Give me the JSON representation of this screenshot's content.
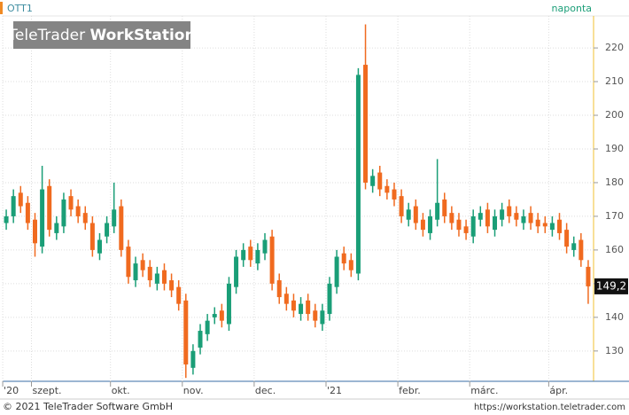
{
  "chart_data": {
    "type": "candlestick",
    "title": "OTT1",
    "interval": "naponta",
    "logo": {
      "brand": "TeleTrader",
      "product": "WorkStation"
    },
    "categories": [
      "'20",
      null,
      null,
      null,
      "szept.",
      null,
      null,
      null,
      null,
      null,
      null,
      null,
      null,
      null,
      null,
      "okt.",
      null,
      null,
      null,
      null,
      null,
      null,
      null,
      null,
      null,
      "nov.",
      null,
      null,
      null,
      null,
      null,
      null,
      null,
      null,
      null,
      "dec.",
      null,
      null,
      null,
      null,
      null,
      null,
      null,
      null,
      null,
      "'21",
      null,
      null,
      null,
      null,
      null,
      null,
      null,
      null,
      null,
      "febr.",
      null,
      null,
      null,
      null,
      null,
      null,
      null,
      null,
      null,
      "márc.",
      null,
      null,
      null,
      null,
      null,
      null,
      null,
      null,
      null,
      null,
      "ápr.",
      null,
      null,
      null,
      null,
      null
    ],
    "open": [
      168,
      170,
      177,
      174,
      169,
      161,
      179,
      165,
      167,
      176,
      173,
      171,
      168,
      159,
      164,
      167,
      173,
      161,
      151,
      157,
      155,
      150,
      154,
      151,
      149,
      145,
      125,
      131,
      135,
      140,
      142,
      138,
      149,
      157,
      161,
      156,
      159,
      164,
      151,
      147,
      145,
      141,
      145,
      142,
      138,
      141,
      149,
      159,
      157,
      153,
      215,
      179,
      183,
      179,
      178,
      176,
      169,
      173,
      169,
      165,
      169,
      175,
      171,
      169,
      167,
      164,
      169,
      172,
      166,
      169,
      173,
      171,
      168,
      171,
      169,
      168,
      166,
      169,
      166,
      160,
      163,
      155
    ],
    "high": [
      172,
      178,
      179,
      176,
      171,
      185,
      181,
      170,
      177,
      178,
      175,
      173,
      170,
      165,
      170,
      180,
      175,
      163,
      158,
      159,
      157,
      155,
      156,
      153,
      151,
      147,
      132,
      138,
      141,
      143,
      144,
      152,
      160,
      162,
      163,
      162,
      165,
      166,
      153,
      149,
      147,
      146,
      147,
      144,
      144,
      152,
      160,
      161,
      159,
      214,
      227,
      184,
      185,
      181,
      180,
      178,
      174,
      175,
      171,
      172,
      187,
      177,
      173,
      171,
      169,
      172,
      173,
      174,
      172,
      174,
      175,
      173,
      172,
      173,
      171,
      170,
      170,
      171,
      168,
      164,
      165,
      157
    ],
    "low": [
      166,
      168,
      171,
      166,
      158,
      159,
      164,
      163,
      165,
      170,
      168,
      166,
      158,
      157,
      162,
      165,
      158,
      150,
      149,
      152,
      149,
      148,
      148,
      146,
      142,
      122,
      123,
      129,
      133,
      138,
      137,
      136,
      147,
      155,
      155,
      154,
      157,
      148,
      144,
      142,
      140,
      139,
      139,
      137,
      136,
      139,
      147,
      154,
      152,
      151,
      178,
      177,
      176,
      175,
      173,
      168,
      167,
      166,
      164,
      163,
      167,
      168,
      166,
      164,
      163,
      162,
      167,
      165,
      164,
      167,
      168,
      167,
      166,
      166,
      165,
      165,
      164,
      163,
      159,
      158,
      155,
      144
    ],
    "close": [
      170,
      176,
      173,
      168,
      162,
      178,
      166,
      168,
      175,
      172,
      170,
      168,
      160,
      163,
      168,
      172,
      160,
      152,
      156,
      154,
      151,
      153,
      150,
      148,
      144,
      126,
      130,
      136,
      139,
      141,
      139,
      150,
      158,
      160,
      157,
      160,
      163,
      150,
      146,
      144,
      142,
      144,
      141,
      139,
      142,
      150,
      158,
      156,
      154,
      212,
      180,
      182,
      178,
      177,
      175,
      170,
      172,
      168,
      166,
      170,
      174,
      170,
      168,
      166,
      165,
      170,
      171,
      167,
      170,
      172,
      170,
      169,
      170,
      168,
      167,
      167,
      168,
      165,
      161,
      162,
      157,
      149.2
    ],
    "up_color": "#1a9e77",
    "down_color": "#f06a1f",
    "ylim": [
      121,
      229.5
    ],
    "yticks": [
      130,
      140,
      150,
      160,
      170,
      180,
      190,
      200,
      210,
      220
    ],
    "grid": true,
    "last_label": {
      "value": 149.2,
      "label": "149,2"
    }
  },
  "footer": {
    "copyright": "© 2021 TeleTrader Software GmbH",
    "url": "https://workstation.teletrader.com"
  }
}
